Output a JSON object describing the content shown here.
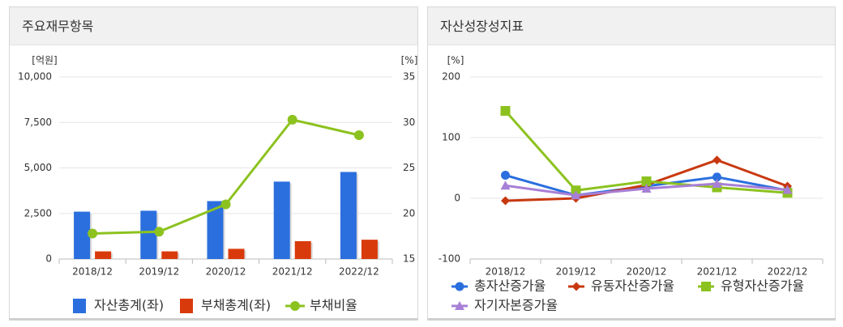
{
  "left_panel": {
    "title": "주요재무항목"
  },
  "right_panel": {
    "title": "자산성장성지표"
  },
  "chart_data": [
    {
      "type": "bar",
      "title": "주요재무항목",
      "categories": [
        "2018/12",
        "2019/12",
        "2020/12",
        "2021/12",
        "2022/12"
      ],
      "y_unit_left": "[억원]",
      "y_unit_right": "[%]",
      "ylim": [
        0,
        10000
      ],
      "yticks": [
        0,
        2500,
        5000,
        7500,
        10000
      ],
      "ytick_labels": [
        "0",
        "2,500",
        "5,000",
        "7,500",
        "10,000"
      ],
      "y2lim": [
        15,
        35
      ],
      "y2ticks": [
        15,
        20,
        25,
        30,
        35
      ],
      "y2tick_labels": [
        "15",
        "20",
        "25",
        "30",
        "35"
      ],
      "series": [
        {
          "name": "자산총계(좌)",
          "type": "bar",
          "axis": "left",
          "color": "#2b6fde",
          "values": [
            2600,
            2650,
            3180,
            4250,
            4780
          ]
        },
        {
          "name": "부채총계(좌)",
          "type": "bar",
          "axis": "left",
          "color": "#d93a0b",
          "values": [
            420,
            420,
            560,
            980,
            1060
          ]
        },
        {
          "name": "부채비율",
          "type": "line",
          "axis": "right",
          "color": "#8cc21f",
          "values": [
            17.8,
            18.0,
            21.0,
            30.3,
            28.6
          ]
        }
      ]
    },
    {
      "type": "line",
      "title": "자산성장성지표",
      "categories": [
        "2018/12",
        "2019/12",
        "2020/12",
        "2021/12",
        "2022/12"
      ],
      "y_unit": "[%]",
      "ylim": [
        -100,
        200
      ],
      "yticks": [
        -100,
        0,
        100,
        200
      ],
      "ytick_labels": [
        "-100",
        "0",
        "100",
        "200"
      ],
      "series": [
        {
          "name": "총자산증가율",
          "color": "#2b6fde",
          "marker": "circle",
          "values": [
            38,
            5,
            20,
            35,
            13
          ]
        },
        {
          "name": "유동자산증가율",
          "color": "#c8380f",
          "marker": "diamond",
          "values": [
            -4,
            0,
            22,
            63,
            20
          ]
        },
        {
          "name": "유형자산증가율",
          "color": "#8cc21f",
          "marker": "square",
          "values": [
            144,
            13,
            28,
            18,
            9
          ]
        },
        {
          "name": "자기자본증가율",
          "color": "#a77fd6",
          "marker": "triangle",
          "values": [
            21,
            5,
            16,
            24,
            14
          ]
        }
      ]
    }
  ]
}
